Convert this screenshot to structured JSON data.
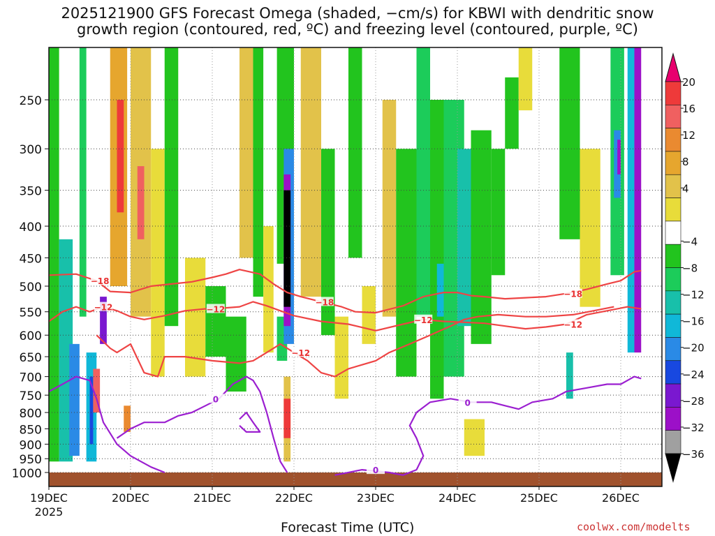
{
  "title": {
    "line1": "2025121900 GFS Forecast Omega (shaded, −cm/s) for KBWI with dendritic snow",
    "line2": "growth region (contoured, red, ºC) and freezing level (contoured, purple, ºC)"
  },
  "footer": {
    "xaxis_title": "Forecast Time (UTC)",
    "credit": "coolwx.com/modelts"
  },
  "chart_data": {
    "type": "heatmap",
    "x": {
      "label": "Forecast Time (UTC)",
      "unit": "hours since 2025-12-19 00Z",
      "range": [
        0,
        174
      ],
      "ticks": [
        {
          "value": 0,
          "label": "19DEC",
          "sub": "2025"
        },
        {
          "value": 24,
          "label": "20DEC"
        },
        {
          "value": 48,
          "label": "21DEC"
        },
        {
          "value": 72,
          "label": "22DEC"
        },
        {
          "value": 96,
          "label": "23DEC"
        },
        {
          "value": 120,
          "label": "24DEC"
        },
        {
          "value": 144,
          "label": "25DEC"
        },
        {
          "value": 168,
          "label": "26DEC"
        }
      ]
    },
    "y": {
      "unit": "hPa",
      "range": [
        1040,
        200
      ],
      "ticks": [
        250,
        300,
        350,
        400,
        450,
        500,
        550,
        600,
        650,
        700,
        750,
        800,
        850,
        900,
        950,
        1000
      ]
    },
    "colorbar": {
      "labels": [
        "20",
        "16",
        "12",
        "8",
        "4",
        "−4",
        "−8",
        "−12",
        "−16",
        "−20",
        "−24",
        "−28",
        "−32",
        "−36"
      ],
      "colors": [
        "#e8006e",
        "#ee3a3a",
        "#f06060",
        "#ea8a30",
        "#e6a62e",
        "#e2c24a",
        "#e8dc3a",
        "#ffffff",
        "#22c41e",
        "#1ccc5a",
        "#18c0aa",
        "#10b8d8",
        "#2a8ae6",
        "#1848e0",
        "#7a18d0",
        "#9c10c8",
        "#a0a0a0",
        "#000000"
      ],
      "top_value": 20,
      "bottom_value": -36
    },
    "omega_cells": [
      {
        "t0": 0,
        "t1": 3,
        "p0": 200,
        "p1": 960,
        "c": 8
      },
      {
        "t0": 3,
        "t1": 7,
        "p0": 420,
        "p1": 960,
        "c": 10
      },
      {
        "t0": 6,
        "t1": 9,
        "p0": 620,
        "p1": 940,
        "c": 12
      },
      {
        "t0": 9,
        "t1": 11,
        "p0": 200,
        "p1": 560,
        "c": 9
      },
      {
        "t0": 11,
        "t1": 14,
        "p0": 640,
        "p1": 960,
        "c": 11
      },
      {
        "t0": 12,
        "t1": 13,
        "p0": 700,
        "p1": 900,
        "c": 13
      },
      {
        "t0": 13,
        "t1": 15,
        "p0": 680,
        "p1": 800,
        "c": 2
      },
      {
        "t0": 15,
        "t1": 17,
        "p0": 520,
        "p1": 620,
        "c": 14
      },
      {
        "t0": 18,
        "t1": 23,
        "p0": 200,
        "p1": 500,
        "c": 4
      },
      {
        "t0": 20,
        "t1": 22,
        "p0": 250,
        "p1": 380,
        "c": 1
      },
      {
        "t0": 22,
        "t1": 24,
        "p0": 780,
        "p1": 860,
        "c": 3
      },
      {
        "t0": 24,
        "t1": 30,
        "p0": 200,
        "p1": 560,
        "c": 5
      },
      {
        "t0": 26,
        "t1": 28,
        "p0": 320,
        "p1": 420,
        "c": 2
      },
      {
        "t0": 30,
        "t1": 34,
        "p0": 300,
        "p1": 700,
        "c": 6
      },
      {
        "t0": 34,
        "t1": 38,
        "p0": 200,
        "p1": 580,
        "c": 8
      },
      {
        "t0": 40,
        "t1": 46,
        "p0": 450,
        "p1": 700,
        "c": 6
      },
      {
        "t0": 46,
        "t1": 52,
        "p0": 500,
        "p1": 650,
        "c": 8
      },
      {
        "t0": 52,
        "t1": 58,
        "p0": 560,
        "p1": 740,
        "c": 8
      },
      {
        "t0": 56,
        "t1": 60,
        "p0": 200,
        "p1": 450,
        "c": 5
      },
      {
        "t0": 60,
        "t1": 63,
        "p0": 200,
        "p1": 520,
        "c": 8
      },
      {
        "t0": 63,
        "t1": 66,
        "p0": 400,
        "p1": 640,
        "c": 6
      },
      {
        "t0": 67,
        "t1": 72,
        "p0": 200,
        "p1": 460,
        "c": 8
      },
      {
        "t0": 67,
        "t1": 70,
        "p0": 560,
        "p1": 660,
        "c": 9
      },
      {
        "t0": 69,
        "t1": 72,
        "p0": 300,
        "p1": 620,
        "c": 12
      },
      {
        "t0": 69,
        "t1": 71,
        "p0": 330,
        "p1": 580,
        "c": 15
      },
      {
        "t0": 69,
        "t1": 71,
        "p0": 350,
        "p1": 540,
        "c": 17
      },
      {
        "t0": 69,
        "t1": 71,
        "p0": 700,
        "p1": 960,
        "c": 5
      },
      {
        "t0": 69,
        "t1": 71,
        "p0": 760,
        "p1": 880,
        "c": 1
      },
      {
        "t0": 74,
        "t1": 80,
        "p0": 200,
        "p1": 520,
        "c": 5
      },
      {
        "t0": 80,
        "t1": 84,
        "p0": 300,
        "p1": 600,
        "c": 8
      },
      {
        "t0": 84,
        "t1": 88,
        "p0": 560,
        "p1": 760,
        "c": 6
      },
      {
        "t0": 88,
        "t1": 92,
        "p0": 200,
        "p1": 450,
        "c": 8
      },
      {
        "t0": 92,
        "t1": 96,
        "p0": 500,
        "p1": 620,
        "c": 6
      },
      {
        "t0": 98,
        "t1": 102,
        "p0": 250,
        "p1": 560,
        "c": 5
      },
      {
        "t0": 102,
        "t1": 108,
        "p0": 300,
        "p1": 700,
        "c": 8
      },
      {
        "t0": 108,
        "t1": 112,
        "p0": 200,
        "p1": 560,
        "c": 9
      },
      {
        "t0": 112,
        "t1": 116,
        "p0": 250,
        "p1": 760,
        "c": 8
      },
      {
        "t0": 114,
        "t1": 116,
        "p0": 460,
        "p1": 560,
        "c": 11
      },
      {
        "t0": 116,
        "t1": 122,
        "p0": 250,
        "p1": 700,
        "c": 9
      },
      {
        "t0": 120,
        "t1": 124,
        "p0": 300,
        "p1": 580,
        "c": 10
      },
      {
        "t0": 124,
        "t1": 130,
        "p0": 280,
        "p1": 620,
        "c": 8
      },
      {
        "t0": 122,
        "t1": 128,
        "p0": 820,
        "p1": 940,
        "c": 6
      },
      {
        "t0": 130,
        "t1": 134,
        "p0": 300,
        "p1": 480,
        "c": 8
      },
      {
        "t0": 134,
        "t1": 138,
        "p0": 230,
        "p1": 300,
        "c": 8
      },
      {
        "t0": 138,
        "t1": 142,
        "p0": 200,
        "p1": 260,
        "c": 6
      },
      {
        "t0": 150,
        "t1": 156,
        "p0": 200,
        "p1": 420,
        "c": 8
      },
      {
        "t0": 152,
        "t1": 154,
        "p0": 640,
        "p1": 760,
        "c": 10
      },
      {
        "t0": 156,
        "t1": 162,
        "p0": 300,
        "p1": 540,
        "c": 6
      },
      {
        "t0": 165,
        "t1": 169,
        "p0": 200,
        "p1": 480,
        "c": 9
      },
      {
        "t0": 166,
        "t1": 168,
        "p0": 280,
        "p1": 360,
        "c": 12
      },
      {
        "t0": 167,
        "t1": 168,
        "p0": 290,
        "p1": 330,
        "c": 15
      },
      {
        "t0": 170,
        "t1": 172,
        "p0": 200,
        "p1": 640,
        "c": 11
      },
      {
        "t0": 172,
        "t1": 174,
        "p0": 200,
        "p1": 640,
        "c": 15
      }
    ],
    "dendritic_contours": [
      {
        "level": "−18",
        "label_at_hours": [
          15,
          81,
          154
        ],
        "points": [
          [
            0,
            480
          ],
          [
            8,
            478
          ],
          [
            14,
            490
          ],
          [
            18,
            510
          ],
          [
            24,
            512
          ],
          [
            30,
            500
          ],
          [
            36,
            496
          ],
          [
            42,
            492
          ],
          [
            48,
            484
          ],
          [
            52,
            478
          ],
          [
            56,
            470
          ],
          [
            62,
            478
          ],
          [
            66,
            496
          ],
          [
            70,
            512
          ],
          [
            74,
            520
          ],
          [
            80,
            530
          ],
          [
            86,
            540
          ],
          [
            90,
            550
          ],
          [
            96,
            552
          ],
          [
            104,
            538
          ],
          [
            110,
            520
          ],
          [
            116,
            512
          ],
          [
            120,
            512
          ],
          [
            124,
            518
          ],
          [
            128,
            520
          ],
          [
            134,
            524
          ],
          [
            140,
            522
          ],
          [
            146,
            520
          ],
          [
            152,
            514
          ],
          [
            158,
            506
          ],
          [
            164,
            496
          ],
          [
            168,
            490
          ],
          [
            172,
            474
          ],
          [
            174,
            472
          ]
        ]
      },
      {
        "level": "−12",
        "label_at_hours": [
          16,
          49,
          110,
          154
        ],
        "points": [
          [
            0,
            570
          ],
          [
            4,
            550
          ],
          [
            8,
            540
          ],
          [
            12,
            550
          ],
          [
            16,
            540
          ],
          [
            20,
            548
          ],
          [
            24,
            560
          ],
          [
            28,
            566
          ],
          [
            34,
            558
          ],
          [
            40,
            548
          ],
          [
            46,
            544
          ],
          [
            52,
            542
          ],
          [
            56,
            540
          ],
          [
            60,
            530
          ],
          [
            64,
            538
          ],
          [
            68,
            548
          ],
          [
            72,
            558
          ],
          [
            80,
            570
          ],
          [
            88,
            576
          ],
          [
            96,
            590
          ],
          [
            104,
            576
          ],
          [
            110,
            566
          ],
          [
            116,
            570
          ],
          [
            122,
            572
          ],
          [
            128,
            574
          ],
          [
            134,
            580
          ],
          [
            140,
            586
          ],
          [
            146,
            582
          ],
          [
            152,
            576
          ],
          [
            158,
            556
          ],
          [
            164,
            548
          ],
          [
            170,
            540
          ],
          [
            174,
            544
          ]
        ]
      },
      {
        "level": "−12",
        "label_at_hours": [
          74
        ],
        "points": [
          [
            14,
            600
          ],
          [
            18,
            630
          ],
          [
            20,
            640
          ],
          [
            24,
            620
          ],
          [
            28,
            690
          ],
          [
            32,
            700
          ],
          [
            34,
            650
          ],
          [
            40,
            650
          ],
          [
            48,
            660
          ],
          [
            56,
            666
          ],
          [
            60,
            660
          ],
          [
            64,
            640
          ],
          [
            68,
            620
          ],
          [
            72,
            640
          ],
          [
            76,
            660
          ],
          [
            80,
            690
          ],
          [
            84,
            700
          ],
          [
            88,
            680
          ],
          [
            92,
            670
          ],
          [
            96,
            660
          ],
          [
            100,
            640
          ],
          [
            106,
            620
          ],
          [
            112,
            600
          ],
          [
            118,
            580
          ],
          [
            122,
            566
          ],
          [
            126,
            560
          ],
          [
            132,
            556
          ],
          [
            140,
            560
          ],
          [
            146,
            560
          ],
          [
            154,
            556
          ],
          [
            160,
            548
          ],
          [
            166,
            540
          ]
        ]
      }
    ],
    "freezing_contours": [
      {
        "level": "0",
        "label_at_hours": [
          49
        ],
        "points": [
          [
            20,
            880
          ],
          [
            24,
            850
          ],
          [
            28,
            830
          ],
          [
            34,
            830
          ],
          [
            38,
            810
          ],
          [
            42,
            800
          ],
          [
            46,
            780
          ],
          [
            50,
            760
          ],
          [
            54,
            720
          ],
          [
            58,
            700
          ],
          [
            60,
            710
          ],
          [
            62,
            740
          ],
          [
            64,
            800
          ],
          [
            66,
            880
          ],
          [
            68,
            960
          ],
          [
            70,
            1000
          ]
        ]
      },
      {
        "level": "0",
        "label_at_hours": [
          96,
          123
        ],
        "points": [
          [
            84,
            1010
          ],
          [
            92,
            990
          ],
          [
            100,
            1000
          ],
          [
            104,
            1010
          ],
          [
            108,
            990
          ],
          [
            110,
            940
          ],
          [
            108,
            880
          ],
          [
            106,
            840
          ],
          [
            108,
            800
          ],
          [
            112,
            770
          ],
          [
            118,
            760
          ],
          [
            124,
            770
          ],
          [
            130,
            770
          ],
          [
            134,
            780
          ],
          [
            138,
            790
          ],
          [
            142,
            770
          ],
          [
            148,
            760
          ],
          [
            152,
            740
          ],
          [
            158,
            730
          ],
          [
            164,
            720
          ],
          [
            168,
            720
          ],
          [
            172,
            700
          ],
          [
            174,
            705
          ]
        ]
      },
      {
        "level": "0",
        "label_at_hours": [],
        "points": [
          [
            0,
            740
          ],
          [
            4,
            720
          ],
          [
            8,
            700
          ],
          [
            12,
            710
          ],
          [
            14,
            760
          ],
          [
            16,
            830
          ],
          [
            20,
            900
          ],
          [
            24,
            940
          ],
          [
            30,
            980
          ],
          [
            34,
            1000
          ]
        ]
      },
      {
        "level": "0",
        "label_at_hours": [],
        "points": [
          [
            56,
            820
          ],
          [
            58,
            800
          ],
          [
            60,
            830
          ],
          [
            62,
            860
          ],
          [
            58,
            860
          ],
          [
            56,
            840
          ]
        ]
      }
    ],
    "terrain": {
      "label": "surface",
      "color": "#a0522d",
      "pressure_top": 1000
    },
    "colors": {
      "dendritic": "#ee4444",
      "freezing": "#9b1fd0",
      "label_red": "#e83030",
      "terrain": "#a0522d"
    }
  }
}
